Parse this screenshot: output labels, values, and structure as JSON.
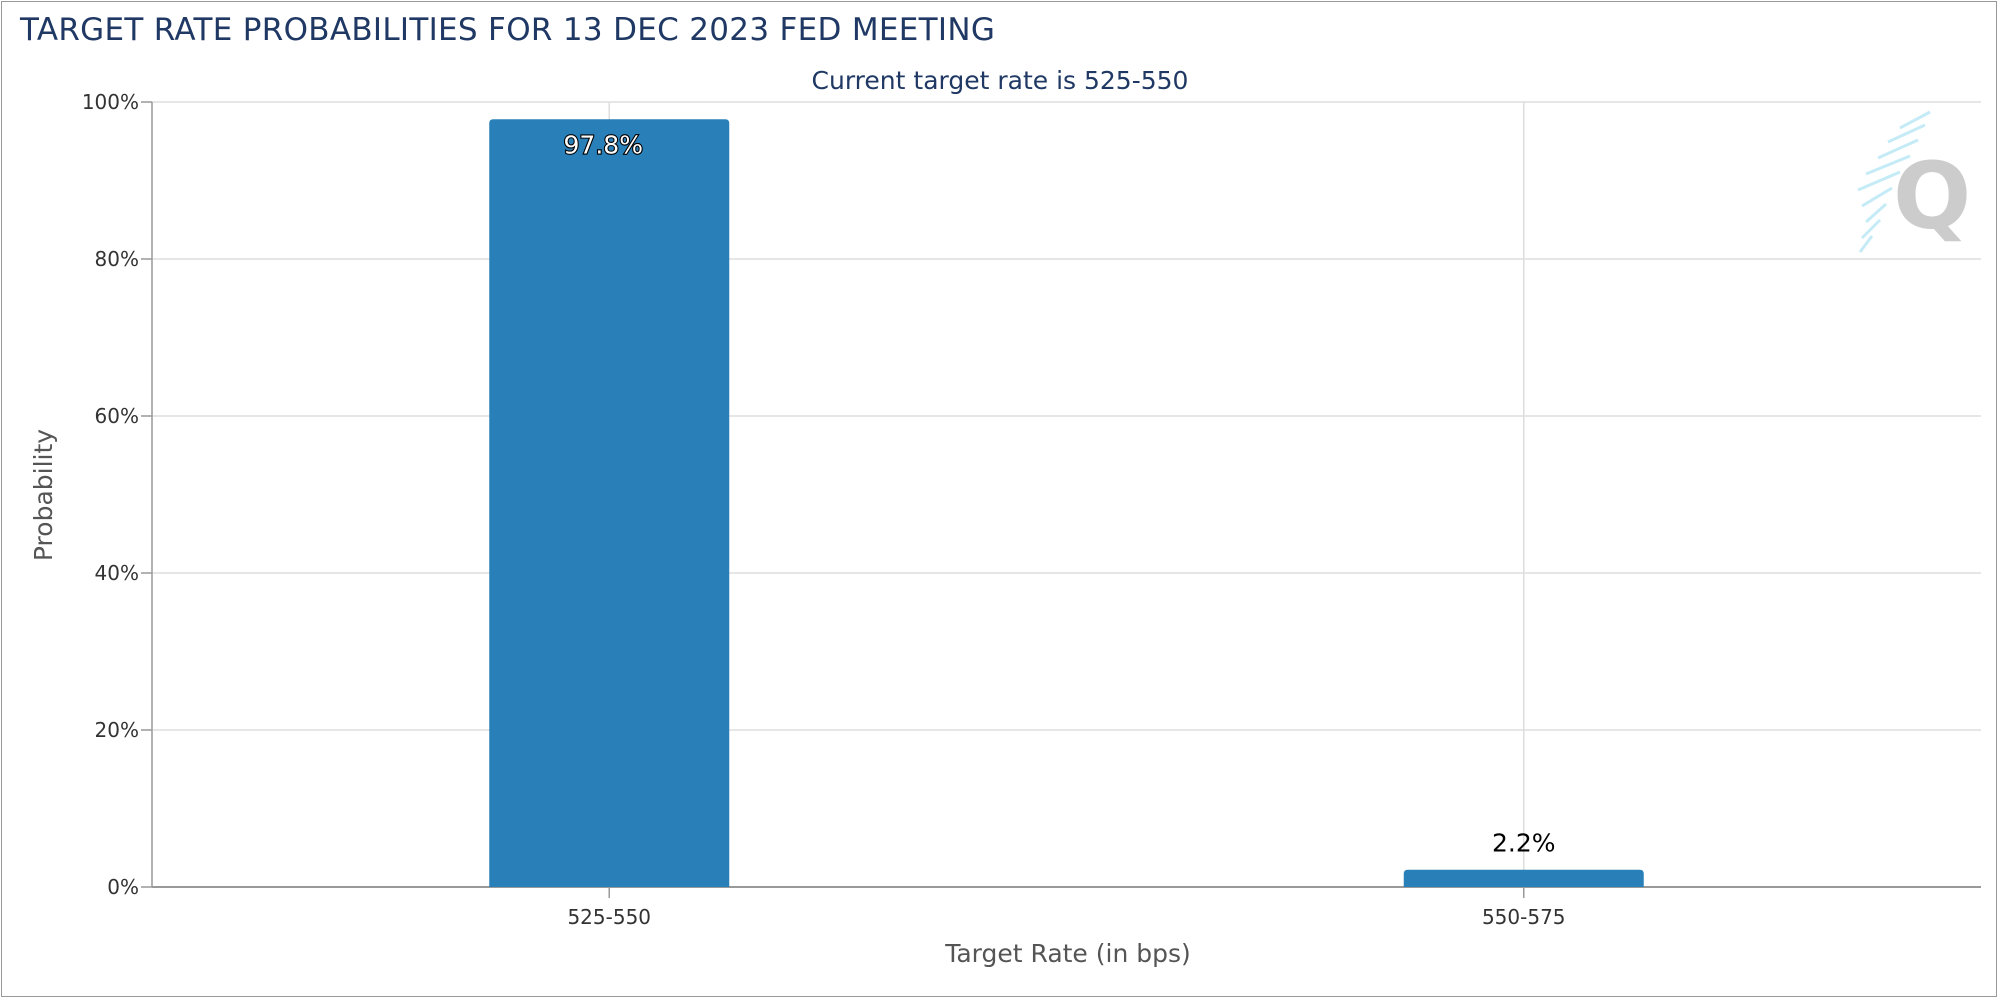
{
  "page": {
    "title": "TARGET RATE PROBABILITIES FOR 13 DEC 2023 FED MEETING"
  },
  "chart_data": {
    "type": "bar",
    "title": "TARGET RATE PROBABILITIES FOR 13 DEC 2023 FED MEETING",
    "subtitle": "Current target rate is 525-550",
    "categories": [
      "525-550",
      "550-575"
    ],
    "values": [
      97.8,
      2.2
    ],
    "data_labels": [
      "97.8%",
      "2.2%"
    ],
    "xlabel": "Target Rate (in bps)",
    "ylabel": "Probability",
    "ylim": [
      0,
      100
    ],
    "yticks": [
      0,
      20,
      40,
      60,
      80,
      100
    ],
    "ytick_labels": [
      "0%",
      "20%",
      "40%",
      "60%",
      "80%",
      "100%"
    ],
    "grid": true,
    "legend": "none",
    "bar_color": "#2980b9",
    "watermark": "Q"
  }
}
